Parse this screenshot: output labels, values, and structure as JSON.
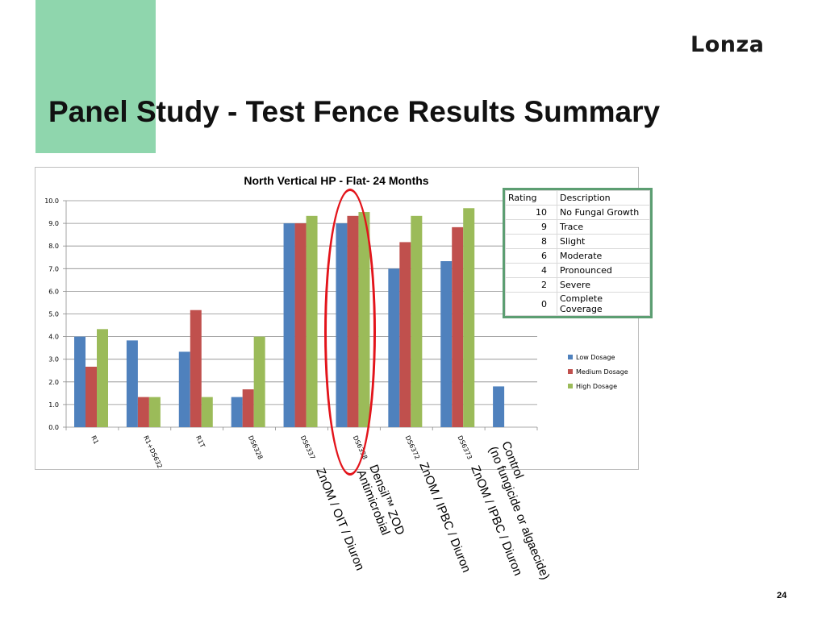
{
  "slide": {
    "title": "Panel Study - Test Fence Results Summary",
    "logo": "Lonza",
    "page_number": "24"
  },
  "colors": {
    "accent_block": "#8fd6ad",
    "low": "#4f81bd",
    "medium": "#c0504d",
    "high": "#9bbb59",
    "highlight": "#e3141b",
    "table_border": "#5c9e72"
  },
  "chart_data": {
    "type": "bar",
    "title": "North Vertical HP - Flat- 24 Months",
    "categories": [
      "R1",
      "R1+DS632",
      "R1T",
      "DS6328",
      "DS6337",
      "DS6338",
      "DS6372",
      "DS6373",
      ""
    ],
    "ylim": [
      0,
      10
    ],
    "yticks": [
      "0.0",
      "1.0",
      "2.0",
      "3.0",
      "4.0",
      "5.0",
      "6.0",
      "7.0",
      "8.0",
      "9.0",
      "10.0"
    ],
    "grid": true,
    "legend_position": "right",
    "series": [
      {
        "name": "Low Dosage",
        "values": [
          4.0,
          3.83,
          3.33,
          1.33,
          9.0,
          9.0,
          7.0,
          7.33,
          1.8
        ]
      },
      {
        "name": "Medium Dosage",
        "values": [
          2.67,
          1.33,
          5.17,
          1.67,
          9.0,
          9.33,
          8.17,
          8.83,
          null
        ]
      },
      {
        "name": "High Dosage",
        "values": [
          4.33,
          1.33,
          1.33,
          4.0,
          9.33,
          9.5,
          9.33,
          9.67,
          null
        ]
      }
    ],
    "annotations": [
      "ZnOM / OIT / Diuron",
      "Densil™ ZOD\nAntimicrobial",
      "ZnOM / IPBC / Diuron",
      "ZnOM / IPBC / Diuron",
      "Control\n(no fungicide or algaecide)"
    ]
  },
  "rating_table": {
    "headers": [
      "Rating",
      "Description"
    ],
    "rows": [
      [
        "10",
        "No Fungal Growth"
      ],
      [
        "9",
        "Trace"
      ],
      [
        "8",
        "Slight"
      ],
      [
        "6",
        "Moderate"
      ],
      [
        "4",
        "Pronounced"
      ],
      [
        "2",
        "Severe"
      ],
      [
        "0",
        "Complete Coverage"
      ]
    ]
  }
}
